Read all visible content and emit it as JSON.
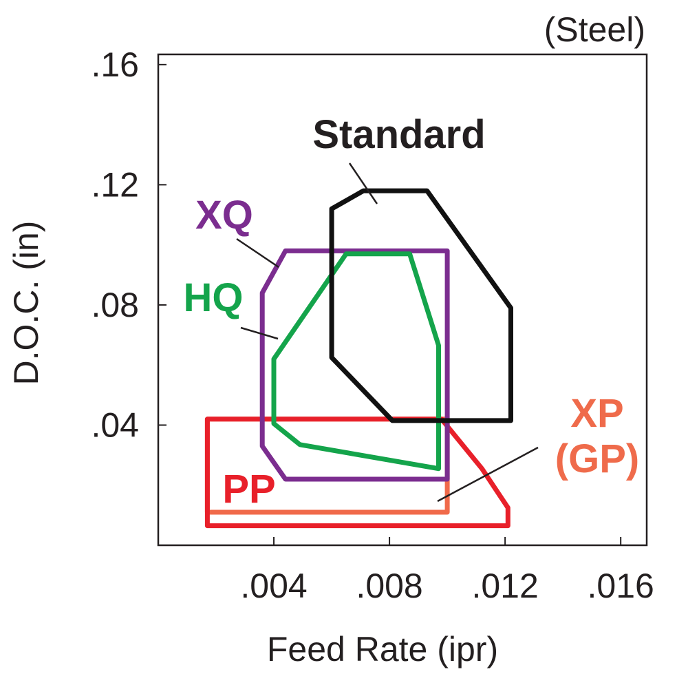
{
  "chart_data": {
    "type": "area",
    "title": "",
    "annotation": "(Steel)",
    "xlabel": "Feed Rate (ipr)",
    "ylabel": "D.O.C. (in)",
    "xlim": [
      0,
      0.0169
    ],
    "ylim": [
      0,
      0.1634
    ],
    "x_ticks": [
      0.004,
      0.008,
      0.012,
      0.016
    ],
    "x_tick_labels": [
      ".004",
      ".008",
      ".012",
      ".016"
    ],
    "y_ticks": [
      0.04,
      0.08,
      0.12,
      0.16
    ],
    "y_tick_labels": [
      ".04",
      ".08",
      ".12",
      ".16"
    ],
    "grid": false,
    "series": [
      {
        "name": "Standard",
        "label_lines": [
          "Standard"
        ],
        "color": "#111111",
        "label_color": "#231f20",
        "polygon": [
          [
            0.0071,
            0.118
          ],
          [
            0.0093,
            0.118
          ],
          [
            0.0122,
            0.079
          ],
          [
            0.0122,
            0.0415
          ],
          [
            0.0081,
            0.0415
          ],
          [
            0.006,
            0.0625
          ],
          [
            0.006,
            0.112
          ]
        ]
      },
      {
        "name": "XQ",
        "label_lines": [
          "XQ"
        ],
        "color": "#7b2d8f",
        "label_color": "#7b2d8f",
        "polygon": [
          [
            0.0044,
            0.098
          ],
          [
            0.01,
            0.098
          ],
          [
            0.01,
            0.022
          ],
          [
            0.0044,
            0.022
          ],
          [
            0.0036,
            0.033
          ],
          [
            0.0036,
            0.084
          ]
        ]
      },
      {
        "name": "HQ",
        "label_lines": [
          "HQ"
        ],
        "color": "#14a44b",
        "label_color": "#14a44b",
        "polygon": [
          [
            0.0065,
            0.097
          ],
          [
            0.0087,
            0.097
          ],
          [
            0.0097,
            0.0665
          ],
          [
            0.0097,
            0.0255
          ],
          [
            0.0049,
            0.0335
          ],
          [
            0.004,
            0.0405
          ],
          [
            0.004,
            0.062
          ]
        ]
      },
      {
        "name": "XP (GP)",
        "label_lines": [
          "XP",
          "(GP)"
        ],
        "color": "#f06a4a",
        "label_color": "#ef6b4b",
        "polygon": [
          [
            0.0017,
            0.042
          ],
          [
            0.01,
            0.042
          ],
          [
            0.01,
            0.011
          ],
          [
            0.0017,
            0.011
          ]
        ]
      },
      {
        "name": "PP",
        "label_lines": [
          "PP"
        ],
        "color": "#e8202a",
        "label_color": "#e8202a",
        "polygon": [
          [
            0.0017,
            0.042
          ],
          [
            0.0098,
            0.042
          ],
          [
            0.0112,
            0.0255
          ],
          [
            0.0121,
            0.0125
          ],
          [
            0.0121,
            0.0065
          ],
          [
            0.0017,
            0.0065
          ]
        ]
      }
    ]
  }
}
